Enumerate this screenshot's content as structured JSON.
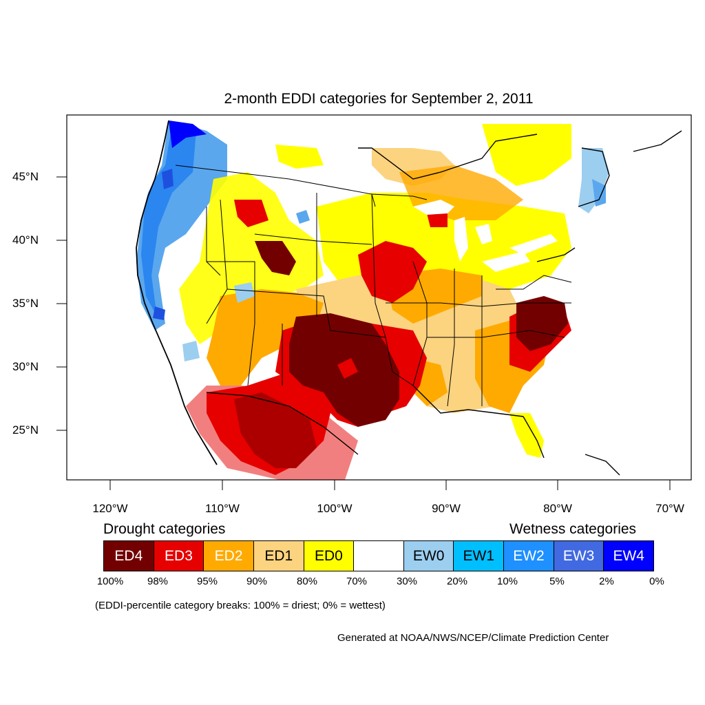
{
  "title": "2-month EDDI categories for September 2, 2011",
  "lat_labels": [
    "45°N",
    "40°N",
    "35°N",
    "30°N",
    "25°N"
  ],
  "lon_labels": [
    "120°W",
    "110°W",
    "100°W",
    "90°W",
    "80°W",
    "70°W"
  ],
  "legend": {
    "drought_heading": "Drought categories",
    "wetness_heading": "Wetness categories",
    "categories": [
      {
        "label": "ED4",
        "color": "#730000",
        "text_color": "#ffffff"
      },
      {
        "label": "ED3",
        "color": "#e60000",
        "text_color": "#ffffff"
      },
      {
        "label": "ED2",
        "color": "#ffaa00",
        "text_color": "#ffffff"
      },
      {
        "label": "ED1",
        "color": "#fcd37f",
        "text_color": "#000000"
      },
      {
        "label": "ED0",
        "color": "#ffff00",
        "text_color": "#000000"
      },
      {
        "label": "",
        "color": "#ffffff",
        "text_color": "#000000"
      },
      {
        "label": "EW0",
        "color": "#9ccef0",
        "text_color": "#000000"
      },
      {
        "label": "EW1",
        "color": "#00bfff",
        "text_color": "#000000"
      },
      {
        "label": "EW2",
        "color": "#1e90ff",
        "text_color": "#ffffff"
      },
      {
        "label": "EW3",
        "color": "#4169e1",
        "text_color": "#ffffff"
      },
      {
        "label": "EW4",
        "color": "#0000ff",
        "text_color": "#ffffff"
      }
    ],
    "percentiles": [
      "100%",
      "98%",
      "95%",
      "90%",
      "80%",
      "70%",
      "30%",
      "20%",
      "10%",
      "5%",
      "2%",
      "0%"
    ]
  },
  "note": "(EDDI-percentile category breaks: 100% = driest; 0% = wettest)",
  "credit": "Generated at NOAA/NWS/NCEP/Climate Prediction Center"
}
